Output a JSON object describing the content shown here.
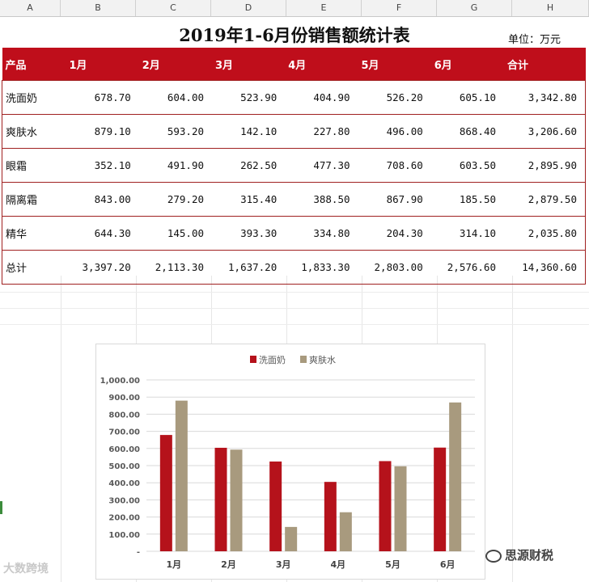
{
  "columns": [
    "A",
    "B",
    "C",
    "D",
    "E",
    "F",
    "G",
    "H"
  ],
  "title": "2019年1-6月份销售额统计表",
  "unit": "单位：万元",
  "table": {
    "header": [
      "产品",
      "1月",
      "2月",
      "3月",
      "4月",
      "5月",
      "6月",
      "合计"
    ],
    "rows": [
      [
        "洗面奶",
        "678.70",
        "604.00",
        "523.90",
        "404.90",
        "526.20",
        "605.10",
        "3,342.80"
      ],
      [
        "爽肤水",
        "879.10",
        "593.20",
        "142.10",
        "227.80",
        "496.00",
        "868.40",
        "3,206.60"
      ],
      [
        "眼霜",
        "352.10",
        "491.90",
        "262.50",
        "477.30",
        "708.60",
        "603.50",
        "2,895.90"
      ],
      [
        "隔离霜",
        "843.00",
        "279.20",
        "315.40",
        "388.50",
        "867.90",
        "185.50",
        "2,879.50"
      ],
      [
        "精华",
        "644.30",
        "145.00",
        "393.30",
        "334.80",
        "204.30",
        "314.10",
        "2,035.80"
      ],
      [
        "总计",
        "3,397.20",
        "2,113.30",
        "1,637.20",
        "1,833.30",
        "2,803.00",
        "2,576.60",
        "14,360.60"
      ]
    ]
  },
  "chart_data": {
    "type": "bar",
    "categories": [
      "1月",
      "2月",
      "3月",
      "4月",
      "5月",
      "6月"
    ],
    "series": [
      {
        "name": "洗面奶",
        "values": [
          678.7,
          604.0,
          523.9,
          404.9,
          526.2,
          605.1
        ],
        "color": "#b5121b"
      },
      {
        "name": "爽肤水",
        "values": [
          879.1,
          593.2,
          142.1,
          227.8,
          496.0,
          868.4
        ],
        "color": "#a89a7e"
      }
    ],
    "ylim": [
      0,
      1000
    ],
    "yticks": [
      "-",
      "100.00",
      "200.00",
      "300.00",
      "400.00",
      "500.00",
      "600.00",
      "700.00",
      "800.00",
      "900.00",
      "1,000.00"
    ],
    "legend": "top",
    "grid": true
  },
  "watermarks": {
    "left": "大数跨境",
    "right": "思源财税"
  }
}
